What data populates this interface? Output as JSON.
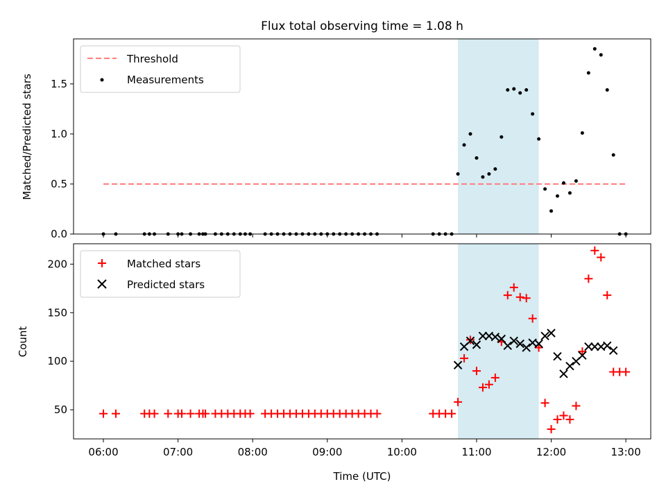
{
  "figure": {
    "title": "Flux total observing time = 1.08 h",
    "xlabel": "Time (UTC)"
  },
  "colors": {
    "threshold": "#ff7f7f",
    "measurement": "#000000",
    "matched": "#ff0000",
    "predicted": "#000000",
    "highlight": "#add8e6"
  },
  "chart_data": [
    {
      "type": "scatter",
      "ylabel": "Matched/Predicted stars",
      "xlim": [
        "05:36",
        "13:20"
      ],
      "ylim": [
        0,
        1.95
      ],
      "grid": false,
      "legend_position": "top-left",
      "x_ticks": [
        "06:00",
        "07:00",
        "08:00",
        "09:00",
        "10:00",
        "11:00",
        "12:00",
        "13:00"
      ],
      "y_ticks": [
        "0.0",
        "0.5",
        "1.0",
        "1.5"
      ],
      "y_tick_values": [
        0,
        0.5,
        1.0,
        1.5
      ],
      "highlight_span": [
        "10:45",
        "11:50"
      ],
      "threshold": {
        "name": "Threshold",
        "x": [
          "06:00",
          "13:00"
        ],
        "y": 0.5
      },
      "series": [
        {
          "name": "Measurements",
          "marker": "dot",
          "x": [
            "06:00",
            "06:10",
            "06:33",
            "06:37",
            "06:41",
            "06:52",
            "07:00",
            "07:03",
            "07:10",
            "07:17",
            "07:20",
            "07:22",
            "07:30",
            "07:35",
            "07:40",
            "07:45",
            "07:50",
            "07:54",
            "07:58",
            "08:10",
            "08:15",
            "08:20",
            "08:25",
            "08:30",
            "08:35",
            "08:40",
            "08:45",
            "08:50",
            "08:55",
            "09:00",
            "09:05",
            "09:10",
            "09:15",
            "09:20",
            "09:25",
            "09:30",
            "09:35",
            "09:40",
            "10:25",
            "10:30",
            "10:35",
            "10:40",
            "10:45",
            "10:50",
            "10:55",
            "11:00",
            "11:05",
            "11:10",
            "11:15",
            "11:20",
            "11:25",
            "11:30",
            "11:35",
            "11:40",
            "11:45",
            "11:50",
            "11:55",
            "12:00",
            "12:05",
            "12:10",
            "12:15",
            "12:20",
            "12:25",
            "12:30",
            "12:35",
            "12:40",
            "12:45",
            "12:50",
            "12:55",
            "13:00"
          ],
          "y": [
            0,
            0,
            0,
            0,
            0,
            0,
            0,
            0,
            0,
            0,
            0,
            0,
            0,
            0,
            0,
            0,
            0,
            0,
            0,
            0,
            0,
            0,
            0,
            0,
            0,
            0,
            0,
            0,
            0,
            0,
            0,
            0,
            0,
            0,
            0,
            0,
            0,
            0,
            0,
            0,
            0,
            0,
            0.6,
            0.89,
            1.0,
            0.76,
            0.57,
            0.6,
            0.65,
            0.97,
            1.44,
            1.45,
            1.41,
            1.44,
            1.2,
            0.95,
            0.45,
            0.23,
            0.38,
            0.51,
            0.41,
            0.53,
            1.01,
            1.61,
            1.85,
            1.79,
            1.44,
            0.79,
            0,
            0
          ]
        }
      ]
    },
    {
      "type": "scatter",
      "ylabel": "Count",
      "xlim": [
        "05:36",
        "13:20"
      ],
      "ylim": [
        20,
        221
      ],
      "grid": false,
      "legend_position": "top-left",
      "x_ticks": [
        "06:00",
        "07:00",
        "08:00",
        "09:00",
        "10:00",
        "11:00",
        "12:00",
        "13:00"
      ],
      "y_ticks": [
        "50",
        "100",
        "150",
        "200"
      ],
      "y_tick_values": [
        50,
        100,
        150,
        200
      ],
      "highlight_span": [
        "10:45",
        "11:50"
      ],
      "series": [
        {
          "name": "Matched stars",
          "marker": "plus",
          "x": [
            "06:00",
            "06:10",
            "06:33",
            "06:37",
            "06:41",
            "06:52",
            "07:00",
            "07:03",
            "07:10",
            "07:17",
            "07:20",
            "07:22",
            "07:30",
            "07:35",
            "07:40",
            "07:45",
            "07:50",
            "07:54",
            "07:58",
            "08:10",
            "08:15",
            "08:20",
            "08:25",
            "08:30",
            "08:35",
            "08:40",
            "08:45",
            "08:50",
            "08:55",
            "09:00",
            "09:05",
            "09:10",
            "09:15",
            "09:20",
            "09:25",
            "09:30",
            "09:35",
            "09:40",
            "10:25",
            "10:30",
            "10:35",
            "10:40",
            "10:45",
            "10:50",
            "10:55",
            "11:00",
            "11:05",
            "11:10",
            "11:15",
            "11:20",
            "11:25",
            "11:30",
            "11:35",
            "11:40",
            "11:45",
            "11:50",
            "11:55",
            "12:00",
            "12:05",
            "12:10",
            "12:15",
            "12:20",
            "12:25",
            "12:30",
            "12:35",
            "12:40",
            "12:45",
            "12:50",
            "12:55",
            "13:00"
          ],
          "y": [
            46,
            46,
            46,
            46,
            46,
            46,
            46,
            46,
            46,
            46,
            46,
            46,
            46,
            46,
            46,
            46,
            46,
            46,
            46,
            46,
            46,
            46,
            46,
            46,
            46,
            46,
            46,
            46,
            46,
            46,
            46,
            46,
            46,
            46,
            46,
            46,
            46,
            46,
            46,
            46,
            46,
            46,
            58,
            103,
            122,
            90,
            73,
            76,
            83,
            120,
            168,
            176,
            166,
            165,
            144,
            114,
            57,
            30,
            40,
            44,
            40,
            54,
            110,
            185,
            214,
            207,
            168,
            89,
            89,
            89
          ]
        },
        {
          "name": "Predicted stars",
          "marker": "x",
          "x": [
            "10:45",
            "10:50",
            "10:55",
            "11:00",
            "11:05",
            "11:10",
            "11:15",
            "11:20",
            "11:25",
            "11:30",
            "11:35",
            "11:40",
            "11:45",
            "11:50",
            "11:55",
            "12:00",
            "12:05",
            "12:10",
            "12:15",
            "12:20",
            "12:25",
            "12:30",
            "12:35",
            "12:40",
            "12:45",
            "12:50"
          ],
          "y": [
            96,
            115,
            121,
            117,
            126,
            126,
            125,
            123,
            116,
            121,
            118,
            114,
            119,
            118,
            126,
            129,
            105,
            87,
            95,
            100,
            106,
            115,
            115,
            115,
            116,
            111
          ]
        }
      ]
    }
  ]
}
